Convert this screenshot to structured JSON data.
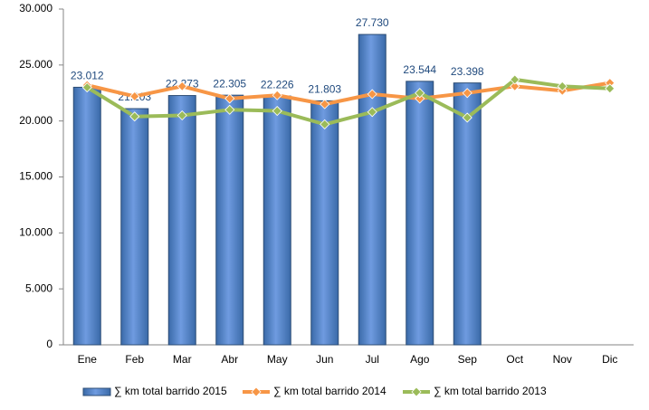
{
  "chart_data": {
    "type": "bar_line",
    "categories": [
      "Ene",
      "Feb",
      "Mar",
      "Abr",
      "May",
      "Jun",
      "Jul",
      "Ago",
      "Sep",
      "Oct",
      "Nov",
      "Dic"
    ],
    "series": [
      {
        "name": "∑ km total barrido 2015",
        "type": "bar",
        "color": "#4f81bd",
        "values": [
          23012,
          21103,
          22273,
          22305,
          22226,
          21803,
          27730,
          23544,
          23398,
          null,
          null,
          null
        ],
        "value_labels": [
          "23.012",
          "21.103",
          "22.273",
          "22.305",
          "22.226",
          "21.803",
          "27.730",
          "23.544",
          "23.398",
          null,
          null,
          null
        ]
      },
      {
        "name": "∑ km total barrido 2014",
        "type": "line",
        "color": "#f79646",
        "values": [
          23200,
          22200,
          23100,
          22000,
          22300,
          21500,
          22400,
          22000,
          22500,
          23100,
          22700,
          23400
        ]
      },
      {
        "name": "∑ km total barrido 2013",
        "type": "line",
        "color": "#9bbb59",
        "values": [
          23000,
          20400,
          20500,
          21000,
          20900,
          19700,
          20800,
          22500,
          20300,
          23700,
          23100,
          22900
        ]
      }
    ],
    "ylim": [
      0,
      30000
    ],
    "yticks": [
      0,
      {
        "value": 5000,
        "label": "5.000"
      },
      {
        "value": 10000,
        "label": "10.000"
      },
      {
        "value": 15000,
        "label": "15.000"
      },
      {
        "value": 20000,
        "label": "20.000"
      },
      {
        "value": 25000,
        "label": "25.000"
      },
      {
        "value": 30000,
        "label": "30.000"
      }
    ],
    "legend": "bottom"
  }
}
